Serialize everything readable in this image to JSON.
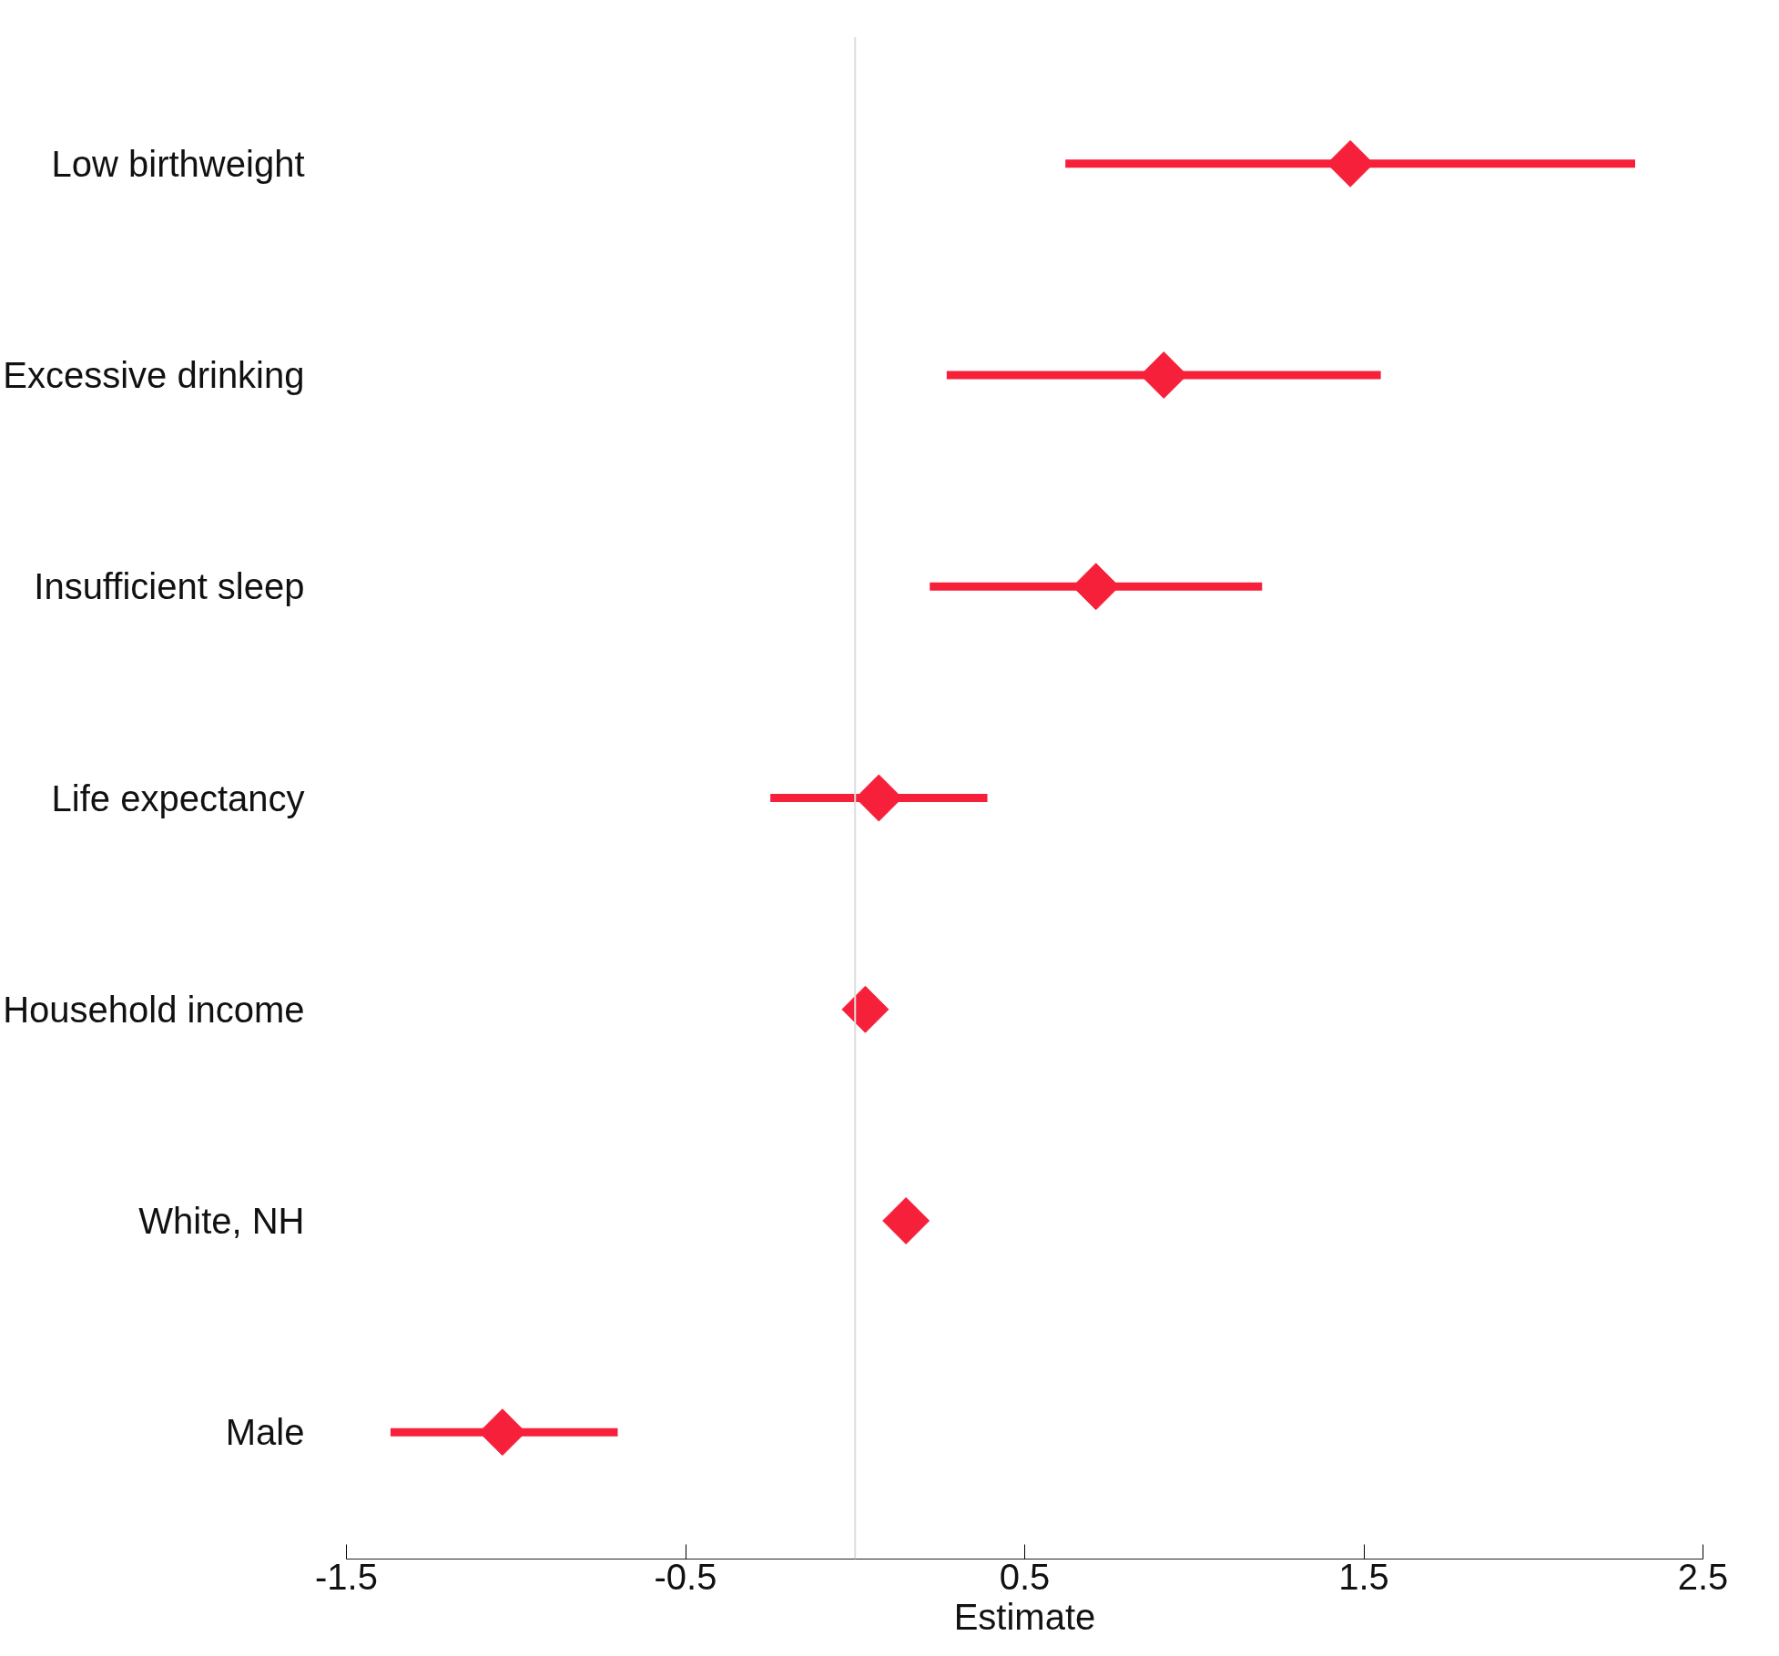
{
  "chart_data": {
    "type": "scatter",
    "orientation": "horizontal",
    "xlabel": "Estimate",
    "categories": [
      "Low birthweight",
      "Excessive drinking",
      "Insufficient sleep",
      "Life expectancy",
      "Household income",
      "White, NH",
      "Male"
    ],
    "series": [
      {
        "color": "#f7203a",
        "values": [
          1.46,
          0.91,
          0.71,
          0.07,
          0.03,
          0.15,
          -1.04
        ],
        "errors": [
          [
            0.62,
            2.3
          ],
          [
            0.27,
            1.55
          ],
          [
            0.22,
            1.2
          ],
          [
            -0.25,
            0.39
          ],
          null,
          null,
          [
            -1.37,
            -0.7
          ]
        ]
      }
    ],
    "xlim": [
      -1.5,
      2.5
    ],
    "xticks": [
      -1.5,
      -0.5,
      0.5,
      1.5,
      2.5
    ],
    "ref_lines": [
      {
        "axis": "x",
        "value": 0,
        "color": "#dddddd"
      }
    ],
    "marker": "diamond",
    "grid": false
  }
}
